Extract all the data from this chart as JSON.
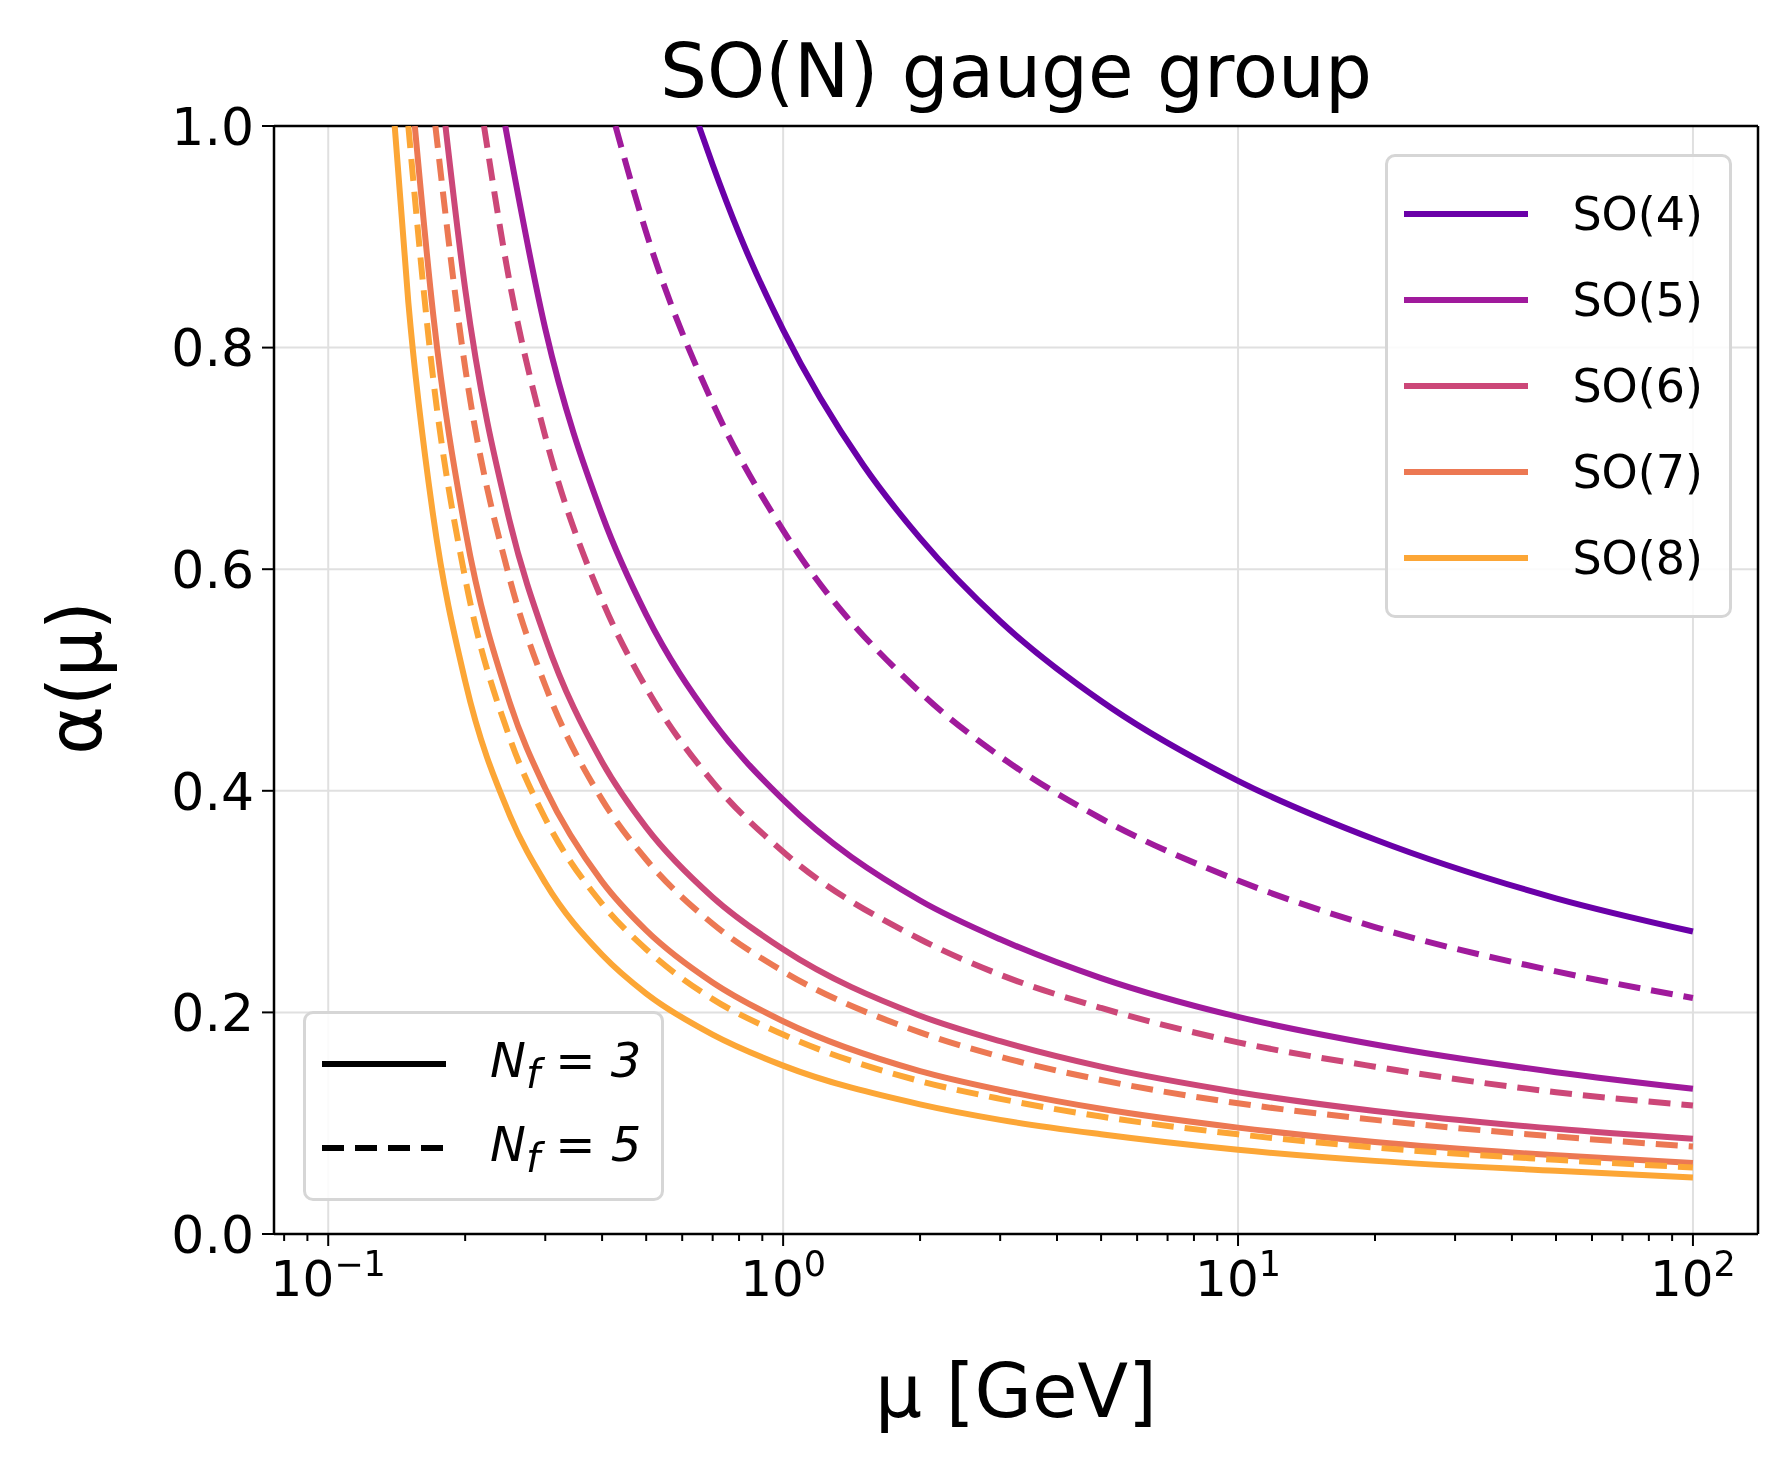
{
  "chart_data": {
    "type": "line",
    "title": "SO(N) gauge group",
    "xlabel": "μ [GeV]",
    "ylabel": "α(μ)",
    "log": "x",
    "grid": true,
    "legend": "top right",
    "xlim": [
      0.076,
      139
    ],
    "ylim": [
      0,
      1
    ],
    "xticks": [
      {
        "value": 0.08,
        "label": null
      },
      {
        "value": 0.09,
        "label": null
      },
      {
        "value": 0.1,
        "label": "10$^{−1}$"
      },
      {
        "value": 0.2,
        "label": null
      },
      {
        "value": 0.3,
        "label": null
      },
      {
        "value": 0.4,
        "label": null
      },
      {
        "value": 0.5,
        "label": null
      },
      {
        "value": 0.6,
        "label": null
      },
      {
        "value": 0.7,
        "label": null
      },
      {
        "value": 0.8,
        "label": null
      },
      {
        "value": 0.9,
        "label": null
      },
      {
        "value": 1,
        "label": "10$^{0}$"
      },
      {
        "value": 2,
        "label": null
      },
      {
        "value": 3,
        "label": null
      },
      {
        "value": 4,
        "label": null
      },
      {
        "value": 5,
        "label": null
      },
      {
        "value": 6,
        "label": null
      },
      {
        "value": 7,
        "label": null
      },
      {
        "value": 8,
        "label": null
      },
      {
        "value": 9,
        "label": null
      },
      {
        "value": 10,
        "label": "10$^{1}$"
      },
      {
        "value": 20,
        "label": null
      },
      {
        "value": 30,
        "label": null
      },
      {
        "value": 40,
        "label": null
      },
      {
        "value": 50,
        "label": null
      },
      {
        "value": 60,
        "label": null
      },
      {
        "value": 70,
        "label": null
      },
      {
        "value": 80,
        "label": null
      },
      {
        "value": 90,
        "label": null
      },
      {
        "value": 100,
        "label": "10$^{2}$"
      }
    ],
    "yticks": [
      {
        "value": 0,
        "label": "0.0"
      },
      {
        "value": 0.2,
        "label": "0.2"
      },
      {
        "value": 0.4,
        "label": "0.4"
      },
      {
        "value": 0.6,
        "label": "0.6"
      },
      {
        "value": 0.8,
        "label": "0.8"
      },
      {
        "value": 1,
        "label": "1.0"
      }
    ],
    "annotations": [
      "N$_{f}$ = 3",
      "N$_{f}$ = 5"
    ],
    "series": [
      {
        "name": "SO(4)",
        "color": "#6a00a8",
        "line_style": "solid",
        "x": [
          0.653,
          0.7,
          0.8,
          1,
          1.5,
          2,
          3,
          5,
          10,
          20,
          50,
          100
        ],
        "values": [
          1,
          0.965,
          0.903,
          0.816,
          0.694,
          0.628,
          0.553,
          0.481,
          0.409,
          0.356,
          0.303,
          0.273
        ]
      },
      {
        "name": "SO(5)",
        "color": "#a01a9c",
        "line_style": "solid",
        "x": [
          0.245,
          0.3,
          0.4,
          0.5,
          0.7,
          1,
          2,
          3,
          5,
          10,
          20,
          50,
          100
        ],
        "values": [
          1,
          0.817,
          0.649,
          0.559,
          0.463,
          0.392,
          0.301,
          0.266,
          0.231,
          0.196,
          0.171,
          0.146,
          0.131
        ]
      },
      {
        "name": "SO(6)",
        "color": "#cc4778",
        "line_style": "solid",
        "x": [
          0.181,
          0.2,
          0.25,
          0.3,
          0.4,
          0.5,
          0.7,
          1,
          2,
          3,
          5,
          10,
          20,
          50,
          100
        ],
        "values": [
          1,
          0.853,
          0.645,
          0.538,
          0.426,
          0.367,
          0.304,
          0.257,
          0.197,
          0.174,
          0.151,
          0.128,
          0.111,
          0.095,
          0.086
        ]
      },
      {
        "name": "SO(7)",
        "color": "#ec7853",
        "line_style": "solid",
        "x": [
          0.155,
          0.17,
          0.2,
          0.25,
          0.3,
          0.4,
          0.5,
          0.7,
          1,
          2,
          3,
          5,
          10,
          20,
          50,
          100
        ],
        "values": [
          1,
          0.831,
          0.636,
          0.481,
          0.402,
          0.318,
          0.274,
          0.227,
          0.192,
          0.147,
          0.13,
          0.113,
          0.096,
          0.083,
          0.071,
          0.064
        ]
      },
      {
        "name": "SO(8)",
        "color": "#fca636",
        "line_style": "solid",
        "x": [
          0.14,
          0.15,
          0.17,
          0.2,
          0.25,
          0.3,
          0.4,
          0.5,
          0.7,
          1,
          2,
          3,
          5,
          10,
          20,
          50,
          100
        ],
        "values": [
          1,
          0.841,
          0.649,
          0.499,
          0.379,
          0.317,
          0.252,
          0.217,
          0.18,
          0.152,
          0.117,
          0.103,
          0.09,
          0.076,
          0.066,
          0.057,
          0.051
        ]
      },
      {
        "color": "#a01a9c",
        "line_style": "dashed",
        "x": [
          0.428,
          0.5,
          0.7,
          1,
          2,
          3,
          5,
          10,
          20,
          50,
          100
        ],
        "values": [
          1,
          0.904,
          0.75,
          0.635,
          0.489,
          0.431,
          0.375,
          0.319,
          0.277,
          0.237,
          0.213
        ]
      },
      {
        "color": "#cc4778",
        "line_style": "dashed",
        "x": [
          0.22,
          0.25,
          0.3,
          0.4,
          0.5,
          0.7,
          1,
          2,
          3,
          5,
          10,
          20,
          50,
          100
        ],
        "values": [
          1,
          0.861,
          0.72,
          0.572,
          0.493,
          0.408,
          0.345,
          0.266,
          0.234,
          0.204,
          0.173,
          0.151,
          0.128,
          0.116
        ]
      },
      {
        "color": "#ec7853",
        "line_style": "dashed",
        "x": [
          0.172,
          0.2,
          0.25,
          0.3,
          0.4,
          0.5,
          0.7,
          1,
          2,
          3,
          5,
          10,
          20,
          50,
          100
        ],
        "values": [
          1,
          0.782,
          0.593,
          0.495,
          0.392,
          0.338,
          0.28,
          0.237,
          0.182,
          0.16,
          0.139,
          0.118,
          0.103,
          0.088,
          0.079
        ]
      },
      {
        "color": "#fca636",
        "line_style": "dashed",
        "x": [
          0.15,
          0.17,
          0.2,
          0.25,
          0.3,
          0.4,
          0.5,
          0.7,
          1,
          2,
          3,
          5,
          10,
          20,
          50,
          100
        ],
        "values": [
          1,
          0.773,
          0.592,
          0.449,
          0.375,
          0.298,
          0.257,
          0.212,
          0.18,
          0.138,
          0.122,
          0.106,
          0.09,
          0.078,
          0.067,
          0.06
        ]
      }
    ]
  }
}
